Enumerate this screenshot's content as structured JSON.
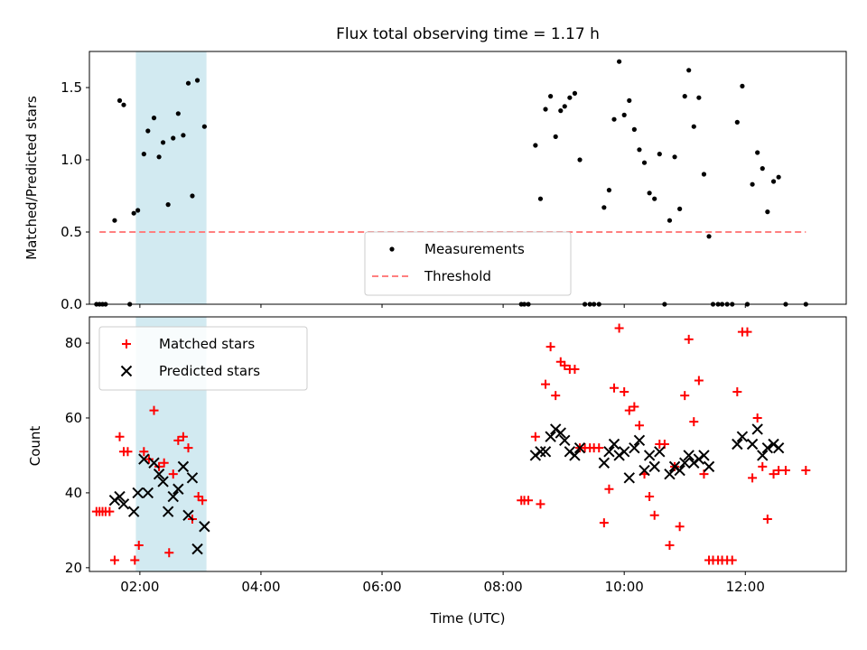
{
  "chart_data": [
    {
      "type": "scatter",
      "title": "Flux total observing time = 1.17 h",
      "xlabel": "",
      "ylabel": "Matched/Predicted stars",
      "xlim": [
        "01:10",
        "13:40"
      ],
      "ylim": [
        0,
        1.75
      ],
      "yticks": [
        0.0,
        0.5,
        1.0,
        1.5
      ],
      "shaded_span": {
        "start": "01:56",
        "end": "03:06",
        "color": "#add8e6"
      },
      "legend_position": "lower center",
      "series": [
        {
          "name": "Measurements",
          "marker": "dot",
          "color": "#000000",
          "points": [
            [
              "01:17",
              0
            ],
            [
              "01:20",
              0
            ],
            [
              "01:23",
              0
            ],
            [
              "01:26",
              0
            ],
            [
              "01:35",
              0.58
            ],
            [
              "01:40",
              1.41
            ],
            [
              "01:44",
              1.38
            ],
            [
              "01:50",
              0
            ],
            [
              "01:54",
              0.63
            ],
            [
              "01:58",
              0.65
            ],
            [
              "02:04",
              1.04
            ],
            [
              "02:08",
              1.2
            ],
            [
              "02:14",
              1.29
            ],
            [
              "02:19",
              1.02
            ],
            [
              "02:23",
              1.12
            ],
            [
              "02:28",
              0.69
            ],
            [
              "02:33",
              1.15
            ],
            [
              "02:38",
              1.32
            ],
            [
              "02:43",
              1.17
            ],
            [
              "02:48",
              1.53
            ],
            [
              "02:52",
              0.75
            ],
            [
              "02:57",
              1.55
            ],
            [
              "03:04",
              1.23
            ],
            [
              "08:18",
              0
            ],
            [
              "08:21",
              0
            ],
            [
              "08:25",
              0
            ],
            [
              "08:32",
              1.1
            ],
            [
              "08:37",
              0.73
            ],
            [
              "08:42",
              1.35
            ],
            [
              "08:47",
              1.44
            ],
            [
              "08:52",
              1.16
            ],
            [
              "08:57",
              1.34
            ],
            [
              "09:01",
              1.37
            ],
            [
              "09:06",
              1.43
            ],
            [
              "09:11",
              1.46
            ],
            [
              "09:16",
              1.0
            ],
            [
              "09:21",
              0
            ],
            [
              "09:26",
              0
            ],
            [
              "09:30",
              0
            ],
            [
              "09:35",
              0
            ],
            [
              "09:40",
              0.67
            ],
            [
              "09:45",
              0.79
            ],
            [
              "09:50",
              1.28
            ],
            [
              "09:55",
              1.68
            ],
            [
              "10:00",
              1.31
            ],
            [
              "10:05",
              1.41
            ],
            [
              "10:10",
              1.21
            ],
            [
              "10:15",
              1.07
            ],
            [
              "10:20",
              0.98
            ],
            [
              "10:25",
              0.77
            ],
            [
              "10:30",
              0.73
            ],
            [
              "10:35",
              1.04
            ],
            [
              "10:40",
              0
            ],
            [
              "10:45",
              0.58
            ],
            [
              "10:50",
              1.02
            ],
            [
              "10:55",
              0.66
            ],
            [
              "11:00",
              1.44
            ],
            [
              "11:04",
              1.62
            ],
            [
              "11:09",
              1.23
            ],
            [
              "11:14",
              1.43
            ],
            [
              "11:19",
              0.9
            ],
            [
              "11:24",
              0.47
            ],
            [
              "11:28",
              0
            ],
            [
              "11:33",
              0
            ],
            [
              "11:37",
              0
            ],
            [
              "11:42",
              0
            ],
            [
              "11:47",
              0
            ],
            [
              "11:52",
              1.26
            ],
            [
              "11:57",
              1.51
            ],
            [
              "12:02",
              0
            ],
            [
              "12:07",
              0.83
            ],
            [
              "12:12",
              1.05
            ],
            [
              "12:17",
              0.94
            ],
            [
              "12:22",
              0.64
            ],
            [
              "12:28",
              0.85
            ],
            [
              "12:33",
              0.88
            ],
            [
              "12:40",
              0
            ],
            [
              "13:00",
              0
            ]
          ]
        },
        {
          "name": "Threshold",
          "marker": "dashed-line",
          "color": "#ff7f7f",
          "points": [
            [
              "01:20",
              0.5
            ],
            [
              "13:00",
              0.5
            ]
          ]
        }
      ]
    },
    {
      "type": "scatter",
      "title": "",
      "xlabel": "Time (UTC)",
      "ylabel": "Count",
      "xlim": [
        "01:10",
        "13:40"
      ],
      "ylim": [
        19,
        87
      ],
      "yticks": [
        20,
        40,
        60,
        80
      ],
      "xticks": [
        "02:00",
        "04:00",
        "06:00",
        "08:00",
        "10:00",
        "12:00"
      ],
      "shaded_span": {
        "start": "01:56",
        "end": "03:06",
        "color": "#add8e6"
      },
      "legend_position": "upper left",
      "series": [
        {
          "name": "Matched stars",
          "marker": "plus",
          "color": "#ff0000",
          "points": [
            [
              "01:17",
              35
            ],
            [
              "01:20",
              35
            ],
            [
              "01:23",
              35
            ],
            [
              "01:26",
              35
            ],
            [
              "01:30",
              35
            ],
            [
              "01:35",
              22
            ],
            [
              "01:40",
              55
            ],
            [
              "01:44",
              51
            ],
            [
              "01:48",
              51
            ],
            [
              "01:55",
              22
            ],
            [
              "01:59",
              26
            ],
            [
              "02:04",
              51
            ],
            [
              "02:09",
              49
            ],
            [
              "02:14",
              62
            ],
            [
              "02:19",
              47
            ],
            [
              "02:24",
              48
            ],
            [
              "02:29",
              24
            ],
            [
              "02:33",
              45
            ],
            [
              "02:38",
              54
            ],
            [
              "02:43",
              55
            ],
            [
              "02:48",
              52
            ],
            [
              "02:52",
              33
            ],
            [
              "02:58",
              39
            ],
            [
              "03:02",
              38
            ],
            [
              "08:18",
              38
            ],
            [
              "08:21",
              38
            ],
            [
              "08:25",
              38
            ],
            [
              "08:32",
              55
            ],
            [
              "08:37",
              37
            ],
            [
              "08:42",
              69
            ],
            [
              "08:47",
              79
            ],
            [
              "08:52",
              66
            ],
            [
              "08:57",
              75
            ],
            [
              "09:01",
              74
            ],
            [
              "09:06",
              73
            ],
            [
              "09:11",
              73
            ],
            [
              "09:16",
              52
            ],
            [
              "09:21",
              52
            ],
            [
              "09:26",
              52
            ],
            [
              "09:30",
              52
            ],
            [
              "09:35",
              52
            ],
            [
              "09:40",
              32
            ],
            [
              "09:45",
              41
            ],
            [
              "09:50",
              68
            ],
            [
              "09:55",
              84
            ],
            [
              "10:00",
              67
            ],
            [
              "10:05",
              62
            ],
            [
              "10:10",
              63
            ],
            [
              "10:15",
              58
            ],
            [
              "10:20",
              45
            ],
            [
              "10:25",
              39
            ],
            [
              "10:30",
              34
            ],
            [
              "10:35",
              53
            ],
            [
              "10:40",
              53
            ],
            [
              "10:45",
              26
            ],
            [
              "10:50",
              47
            ],
            [
              "10:55",
              31
            ],
            [
              "11:00",
              66
            ],
            [
              "11:04",
              81
            ],
            [
              "11:09",
              59
            ],
            [
              "11:14",
              70
            ],
            [
              "11:19",
              45
            ],
            [
              "11:24",
              22
            ],
            [
              "11:28",
              22
            ],
            [
              "11:33",
              22
            ],
            [
              "11:37",
              22
            ],
            [
              "11:42",
              22
            ],
            [
              "11:47",
              22
            ],
            [
              "11:52",
              67
            ],
            [
              "11:57",
              83
            ],
            [
              "12:02",
              83
            ],
            [
              "12:07",
              44
            ],
            [
              "12:12",
              60
            ],
            [
              "12:17",
              47
            ],
            [
              "12:22",
              33
            ],
            [
              "12:28",
              45
            ],
            [
              "12:33",
              46
            ],
            [
              "12:40",
              46
            ],
            [
              "13:00",
              46
            ]
          ]
        },
        {
          "name": "Predicted stars",
          "marker": "x",
          "color": "#000000",
          "points": [
            [
              "01:35",
              38
            ],
            [
              "01:40",
              39
            ],
            [
              "01:44",
              37
            ],
            [
              "01:54",
              35
            ],
            [
              "01:58",
              40
            ],
            [
              "02:04",
              49
            ],
            [
              "02:08",
              40
            ],
            [
              "02:14",
              48
            ],
            [
              "02:19",
              45
            ],
            [
              "02:23",
              43
            ],
            [
              "02:28",
              35
            ],
            [
              "02:33",
              39
            ],
            [
              "02:38",
              41
            ],
            [
              "02:43",
              47
            ],
            [
              "02:48",
              34
            ],
            [
              "02:52",
              44
            ],
            [
              "02:57",
              25
            ],
            [
              "03:04",
              31
            ],
            [
              "08:32",
              50
            ],
            [
              "08:37",
              51
            ],
            [
              "08:42",
              51
            ],
            [
              "08:47",
              55
            ],
            [
              "08:52",
              57
            ],
            [
              "08:57",
              56
            ],
            [
              "09:01",
              54
            ],
            [
              "09:06",
              51
            ],
            [
              "09:11",
              50
            ],
            [
              "09:16",
              52
            ],
            [
              "09:40",
              48
            ],
            [
              "09:45",
              51
            ],
            [
              "09:50",
              53
            ],
            [
              "09:55",
              50
            ],
            [
              "10:00",
              51
            ],
            [
              "10:05",
              44
            ],
            [
              "10:10",
              52
            ],
            [
              "10:15",
              54
            ],
            [
              "10:20",
              46
            ],
            [
              "10:25",
              50
            ],
            [
              "10:30",
              47
            ],
            [
              "10:35",
              51
            ],
            [
              "10:45",
              45
            ],
            [
              "10:50",
              47
            ],
            [
              "10:55",
              46
            ],
            [
              "11:00",
              48
            ],
            [
              "11:04",
              50
            ],
            [
              "11:09",
              48
            ],
            [
              "11:14",
              49
            ],
            [
              "11:19",
              50
            ],
            [
              "11:24",
              47
            ],
            [
              "11:52",
              53
            ],
            [
              "11:57",
              55
            ],
            [
              "12:07",
              53
            ],
            [
              "12:12",
              57
            ],
            [
              "12:17",
              50
            ],
            [
              "12:22",
              52
            ],
            [
              "12:28",
              53
            ],
            [
              "12:33",
              52
            ]
          ]
        }
      ]
    }
  ]
}
